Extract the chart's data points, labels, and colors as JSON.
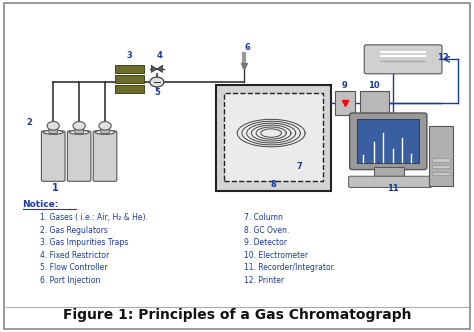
{
  "title": "Figure 1: Principles of a Gas Chromatograph",
  "title_fontsize": 10,
  "border_color": "#aaaaaa",
  "bg_color": "#ffffff",
  "diagram_bg": "#f8f8f8",
  "blue_color": "#1a3c9e",
  "gray_light": "#cccccc",
  "gray_med": "#999999",
  "gray_dark": "#666666",
  "olive": "#6b6b2a",
  "notice_label": "Notice:",
  "notice_items_left": [
    "1. Gases ( i.e.: Air, H₂ & He).",
    "2. Gas Regulators",
    "3. Gas Impurities Traps",
    "4. Fixed Restrictor",
    "5. Flow Controller",
    "6. Port Injection"
  ],
  "notice_items_right": [
    "7. Column",
    "8. GC Oven.",
    "9. Detector",
    "10. Electrometer",
    "11. Recorder/Integrator.",
    "12. Printer"
  ]
}
